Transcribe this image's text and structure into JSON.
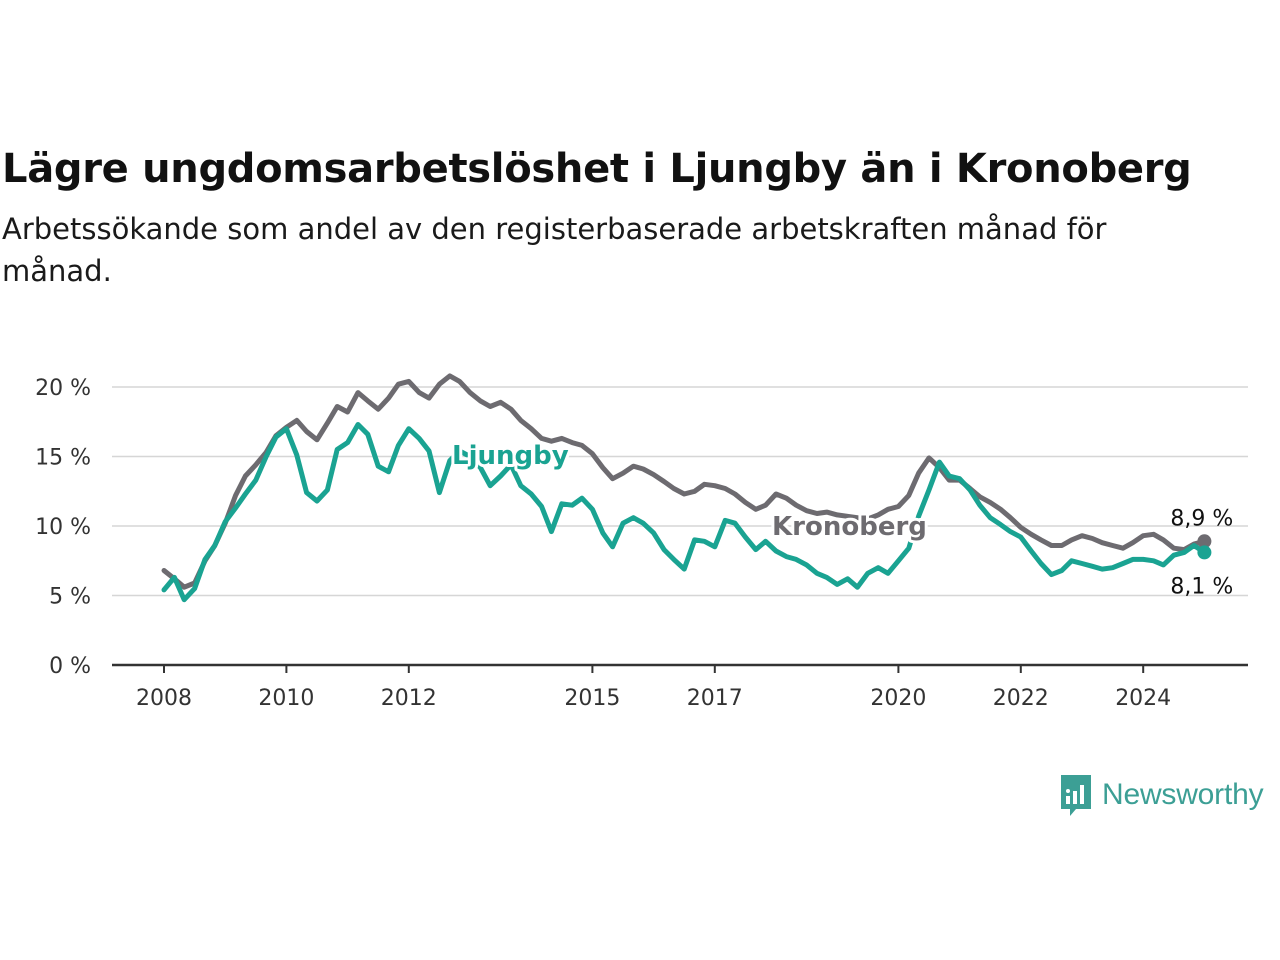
{
  "title": "Lägre ungdomsarbetslöshet i Ljungby än i Kronoberg",
  "subtitle": "Arbetssökande som andel av den registerbaserade arbetskraften månad för månad.",
  "brand": {
    "name": "Newsworthy",
    "icon": "newsworthy-logo-icon",
    "color": "#3c9f95"
  },
  "chart_data": {
    "type": "line",
    "title": "Lägre ungdomsarbetslöshet i Ljungby än i Kronoberg",
    "xlabel": "",
    "ylabel": "",
    "ylim": [
      0,
      22
    ],
    "grid": true,
    "y_ticks": [
      {
        "value": 0,
        "label": "0 %"
      },
      {
        "value": 5,
        "label": "5 %"
      },
      {
        "value": 10,
        "label": "10 %"
      },
      {
        "value": 15,
        "label": "15 %"
      },
      {
        "value": 20,
        "label": "20 %"
      }
    ],
    "x_ticks": [
      {
        "value": 2008,
        "label": "2008"
      },
      {
        "value": 2010,
        "label": "2010"
      },
      {
        "value": 2012,
        "label": "2012"
      },
      {
        "value": 2015,
        "label": "2015"
      },
      {
        "value": 2017,
        "label": "2017"
      },
      {
        "value": 2020,
        "label": "2020"
      },
      {
        "value": 2022,
        "label": "2022"
      },
      {
        "value": 2024,
        "label": "2024"
      }
    ],
    "series": [
      {
        "name": "Kronoberg",
        "color": "#6d6b70",
        "end_label": "8,9 %",
        "points": [
          [
            2008.0,
            6.8
          ],
          [
            2008.17,
            6.2
          ],
          [
            2008.33,
            5.6
          ],
          [
            2008.5,
            5.9
          ],
          [
            2008.67,
            7.5
          ],
          [
            2008.83,
            8.6
          ],
          [
            2009.0,
            10.2
          ],
          [
            2009.17,
            12.2
          ],
          [
            2009.33,
            13.6
          ],
          [
            2009.5,
            14.4
          ],
          [
            2009.67,
            15.3
          ],
          [
            2009.83,
            16.5
          ],
          [
            2010.0,
            17.1
          ],
          [
            2010.17,
            17.6
          ],
          [
            2010.33,
            16.8
          ],
          [
            2010.5,
            16.2
          ],
          [
            2010.67,
            17.4
          ],
          [
            2010.83,
            18.6
          ],
          [
            2011.0,
            18.2
          ],
          [
            2011.17,
            19.6
          ],
          [
            2011.33,
            19.0
          ],
          [
            2011.5,
            18.4
          ],
          [
            2011.67,
            19.2
          ],
          [
            2011.83,
            20.2
          ],
          [
            2012.0,
            20.4
          ],
          [
            2012.17,
            19.6
          ],
          [
            2012.33,
            19.2
          ],
          [
            2012.5,
            20.2
          ],
          [
            2012.67,
            20.8
          ],
          [
            2012.83,
            20.4
          ],
          [
            2013.0,
            19.6
          ],
          [
            2013.17,
            19.0
          ],
          [
            2013.33,
            18.6
          ],
          [
            2013.5,
            18.9
          ],
          [
            2013.67,
            18.4
          ],
          [
            2013.83,
            17.6
          ],
          [
            2014.0,
            17.0
          ],
          [
            2014.17,
            16.3
          ],
          [
            2014.33,
            16.1
          ],
          [
            2014.5,
            16.3
          ],
          [
            2014.67,
            16.0
          ],
          [
            2014.83,
            15.8
          ],
          [
            2015.0,
            15.2
          ],
          [
            2015.17,
            14.2
          ],
          [
            2015.33,
            13.4
          ],
          [
            2015.5,
            13.8
          ],
          [
            2015.67,
            14.3
          ],
          [
            2015.83,
            14.1
          ],
          [
            2016.0,
            13.7
          ],
          [
            2016.17,
            13.2
          ],
          [
            2016.33,
            12.7
          ],
          [
            2016.5,
            12.3
          ],
          [
            2016.67,
            12.5
          ],
          [
            2016.83,
            13.0
          ],
          [
            2017.0,
            12.9
          ],
          [
            2017.17,
            12.7
          ],
          [
            2017.33,
            12.3
          ],
          [
            2017.5,
            11.7
          ],
          [
            2017.67,
            11.2
          ],
          [
            2017.83,
            11.5
          ],
          [
            2018.0,
            12.3
          ],
          [
            2018.17,
            12.0
          ],
          [
            2018.33,
            11.5
          ],
          [
            2018.5,
            11.1
          ],
          [
            2018.67,
            10.9
          ],
          [
            2018.83,
            11.0
          ],
          [
            2019.0,
            10.8
          ],
          [
            2019.17,
            10.7
          ],
          [
            2019.33,
            10.6
          ],
          [
            2019.5,
            10.5
          ],
          [
            2019.67,
            10.8
          ],
          [
            2019.83,
            11.2
          ],
          [
            2020.0,
            11.4
          ],
          [
            2020.17,
            12.2
          ],
          [
            2020.33,
            13.8
          ],
          [
            2020.5,
            14.9
          ],
          [
            2020.67,
            14.2
          ],
          [
            2020.83,
            13.3
          ],
          [
            2021.0,
            13.3
          ],
          [
            2021.17,
            12.7
          ],
          [
            2021.33,
            12.1
          ],
          [
            2021.5,
            11.7
          ],
          [
            2021.67,
            11.2
          ],
          [
            2021.83,
            10.6
          ],
          [
            2022.0,
            9.9
          ],
          [
            2022.17,
            9.4
          ],
          [
            2022.33,
            9.0
          ],
          [
            2022.5,
            8.6
          ],
          [
            2022.67,
            8.6
          ],
          [
            2022.83,
            9.0
          ],
          [
            2023.0,
            9.3
          ],
          [
            2023.17,
            9.1
          ],
          [
            2023.33,
            8.8
          ],
          [
            2023.5,
            8.6
          ],
          [
            2023.67,
            8.4
          ],
          [
            2023.83,
            8.8
          ],
          [
            2024.0,
            9.3
          ],
          [
            2024.17,
            9.4
          ],
          [
            2024.33,
            9.0
          ],
          [
            2024.5,
            8.4
          ],
          [
            2024.67,
            8.3
          ],
          [
            2024.83,
            8.7
          ],
          [
            2025.0,
            8.9
          ]
        ]
      },
      {
        "name": "Ljungby",
        "color": "#1aa392",
        "end_label": "8,1 %",
        "points": [
          [
            2008.0,
            5.4
          ],
          [
            2008.17,
            6.3
          ],
          [
            2008.33,
            4.7
          ],
          [
            2008.5,
            5.5
          ],
          [
            2008.67,
            7.6
          ],
          [
            2008.83,
            8.6
          ],
          [
            2009.0,
            10.3
          ],
          [
            2009.17,
            11.3
          ],
          [
            2009.33,
            12.3
          ],
          [
            2009.5,
            13.3
          ],
          [
            2009.67,
            15.0
          ],
          [
            2009.83,
            16.4
          ],
          [
            2010.0,
            17.0
          ],
          [
            2010.17,
            15.1
          ],
          [
            2010.33,
            12.4
          ],
          [
            2010.5,
            11.8
          ],
          [
            2010.67,
            12.6
          ],
          [
            2010.83,
            15.5
          ],
          [
            2011.0,
            16.0
          ],
          [
            2011.17,
            17.3
          ],
          [
            2011.33,
            16.6
          ],
          [
            2011.5,
            14.3
          ],
          [
            2011.67,
            13.9
          ],
          [
            2011.83,
            15.8
          ],
          [
            2012.0,
            17.0
          ],
          [
            2012.17,
            16.3
          ],
          [
            2012.33,
            15.4
          ],
          [
            2012.5,
            12.4
          ],
          [
            2012.67,
            14.7
          ],
          [
            2012.83,
            15.4
          ],
          [
            2013.0,
            15.0
          ],
          [
            2013.17,
            14.2
          ],
          [
            2013.33,
            12.9
          ],
          [
            2013.5,
            13.6
          ],
          [
            2013.67,
            14.4
          ],
          [
            2013.83,
            12.9
          ],
          [
            2014.0,
            12.3
          ],
          [
            2014.17,
            11.4
          ],
          [
            2014.33,
            9.6
          ],
          [
            2014.5,
            11.6
          ],
          [
            2014.67,
            11.5
          ],
          [
            2014.83,
            12.0
          ],
          [
            2015.0,
            11.2
          ],
          [
            2015.17,
            9.5
          ],
          [
            2015.33,
            8.5
          ],
          [
            2015.5,
            10.2
          ],
          [
            2015.67,
            10.6
          ],
          [
            2015.83,
            10.2
          ],
          [
            2016.0,
            9.5
          ],
          [
            2016.17,
            8.3
          ],
          [
            2016.33,
            7.6
          ],
          [
            2016.5,
            6.9
          ],
          [
            2016.67,
            9.0
          ],
          [
            2016.83,
            8.9
          ],
          [
            2017.0,
            8.5
          ],
          [
            2017.17,
            10.4
          ],
          [
            2017.33,
            10.2
          ],
          [
            2017.5,
            9.2
          ],
          [
            2017.67,
            8.3
          ],
          [
            2017.83,
            8.9
          ],
          [
            2018.0,
            8.2
          ],
          [
            2018.17,
            7.8
          ],
          [
            2018.33,
            7.6
          ],
          [
            2018.5,
            7.2
          ],
          [
            2018.67,
            6.6
          ],
          [
            2018.83,
            6.3
          ],
          [
            2019.0,
            5.8
          ],
          [
            2019.17,
            6.2
          ],
          [
            2019.33,
            5.6
          ],
          [
            2019.5,
            6.6
          ],
          [
            2019.67,
            7.0
          ],
          [
            2019.83,
            6.6
          ],
          [
            2020.0,
            7.5
          ],
          [
            2020.17,
            8.4
          ],
          [
            2020.33,
            10.7
          ],
          [
            2020.5,
            12.6
          ],
          [
            2020.67,
            14.6
          ],
          [
            2020.83,
            13.6
          ],
          [
            2021.0,
            13.4
          ],
          [
            2021.17,
            12.6
          ],
          [
            2021.33,
            11.5
          ],
          [
            2021.5,
            10.6
          ],
          [
            2021.67,
            10.1
          ],
          [
            2021.83,
            9.6
          ],
          [
            2022.0,
            9.2
          ],
          [
            2022.17,
            8.2
          ],
          [
            2022.33,
            7.3
          ],
          [
            2022.5,
            6.5
          ],
          [
            2022.67,
            6.8
          ],
          [
            2022.83,
            7.5
          ],
          [
            2023.0,
            7.3
          ],
          [
            2023.17,
            7.1
          ],
          [
            2023.33,
            6.9
          ],
          [
            2023.5,
            7.0
          ],
          [
            2023.67,
            7.3
          ],
          [
            2023.83,
            7.6
          ],
          [
            2024.0,
            7.6
          ],
          [
            2024.17,
            7.5
          ],
          [
            2024.33,
            7.2
          ],
          [
            2024.5,
            7.9
          ],
          [
            2024.67,
            8.1
          ],
          [
            2024.83,
            8.6
          ],
          [
            2025.0,
            8.1
          ]
        ]
      }
    ]
  }
}
